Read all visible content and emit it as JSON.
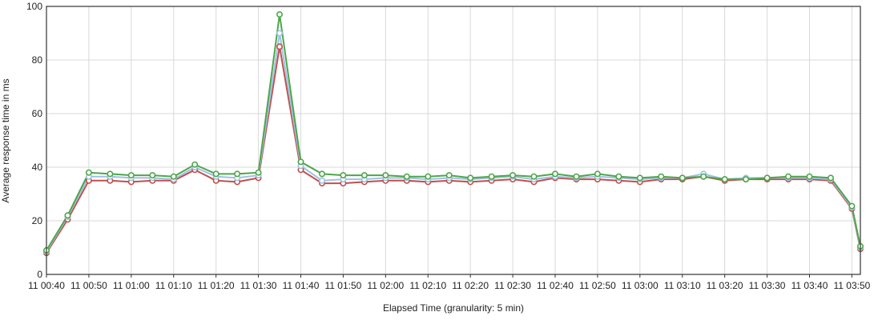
{
  "chart_data": {
    "type": "line",
    "xlabel": "Elapsed Time (granularity: 5 min)",
    "ylabel": "Average response time in ms",
    "ylim": [
      0,
      100
    ],
    "yticks": [
      0,
      20,
      40,
      60,
      80,
      100
    ],
    "x_tick_labels": [
      "11 00:40",
      "11 00:50",
      "11 01:00",
      "11 01:10",
      "11 01:20",
      "11 01:30",
      "11 01:40",
      "11 01:50",
      "11 02:00",
      "11 02:10",
      "11 02:20",
      "11 02:30",
      "11 02:40",
      "11 02:50",
      "11 03:00",
      "11 03:10",
      "11 03:20",
      "11 03:30",
      "11 03:40",
      "11 03:50"
    ],
    "x_start_minutes": 40,
    "x_step_minutes": 5,
    "x_end_minutes": 232,
    "grid": true,
    "series": [
      {
        "color": "#c0504d",
        "values": [
          8,
          20.5,
          35,
          35,
          34.5,
          35,
          35,
          39,
          35,
          34.5,
          36,
          85,
          39,
          34,
          34,
          34.5,
          35,
          35,
          34.5,
          35,
          34.5,
          35,
          35.5,
          34.5,
          36,
          35.5,
          35.5,
          35,
          34.5,
          35.5,
          35.5,
          36.5,
          35,
          35.5,
          35.5,
          35.5,
          35.5,
          35,
          24.5,
          9.5
        ]
      },
      {
        "color": "#9dc3e6",
        "values": [
          8.5,
          21.5,
          36.5,
          36.5,
          36,
          36,
          35.5,
          40,
          36.5,
          36,
          37,
          90,
          40.5,
          35,
          35.5,
          35.5,
          36,
          36,
          35.5,
          36,
          35.5,
          36,
          36.5,
          35.5,
          36.5,
          36,
          36.5,
          36,
          35.5,
          36,
          36,
          37.5,
          35.5,
          36,
          36,
          36,
          36,
          35.5,
          25,
          10
        ]
      },
      {
        "color": "#4ea64a",
        "values": [
          9,
          22,
          38,
          37.5,
          37,
          37,
          36.5,
          41,
          37.5,
          37.5,
          38,
          97,
          42,
          37.5,
          37,
          37,
          37,
          36.5,
          36.5,
          37,
          36,
          36.5,
          37,
          36.5,
          37.5,
          36.5,
          37.5,
          36.5,
          36,
          36.5,
          36,
          36.5,
          35.5,
          35.5,
          36,
          36.5,
          36.5,
          36,
          25.5,
          10.5
        ]
      }
    ]
  }
}
